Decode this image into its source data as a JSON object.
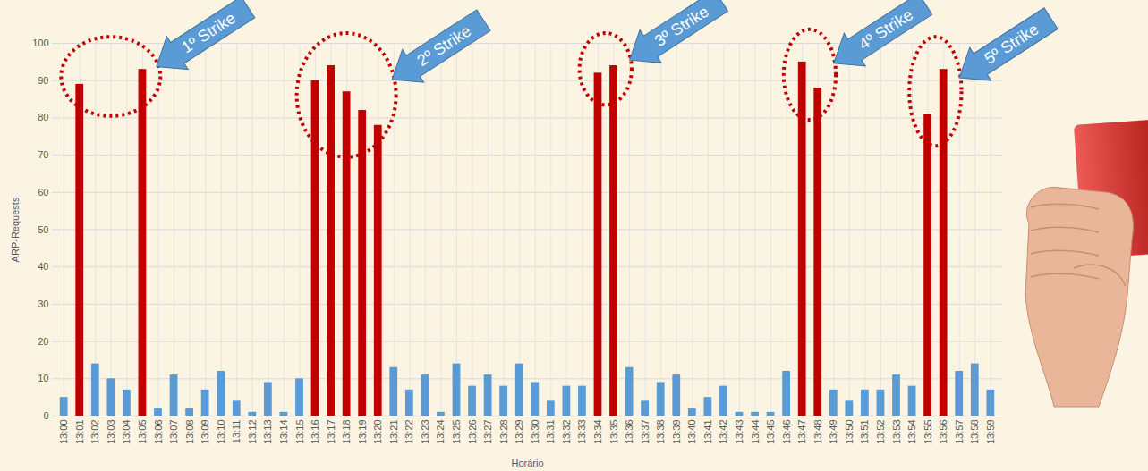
{
  "chart_data": {
    "type": "bar",
    "x_label": "Horário",
    "y_label": "ARP-Requests",
    "categories": [
      "13:00",
      "13:01",
      "13:02",
      "13:03",
      "13:04",
      "13:05",
      "13:06",
      "13:07",
      "13:08",
      "13:09",
      "13:10",
      "13:11",
      "13:12",
      "13:13",
      "13:14",
      "13:15",
      "13:16",
      "13:17",
      "13:18",
      "13:19",
      "13:20",
      "13:21",
      "13:22",
      "13:23",
      "13:24",
      "13:25",
      "13:26",
      "13:27",
      "13:28",
      "13:29",
      "13:30",
      "13:31",
      "13:32",
      "13:33",
      "13:34",
      "13:35",
      "13:36",
      "13:37",
      "13:38",
      "13:39",
      "13:40",
      "13:41",
      "13:42",
      "13:43",
      "13:44",
      "13:45",
      "13:46",
      "13:47",
      "13:48",
      "13:49",
      "13:50",
      "13:51",
      "13:52",
      "13:53",
      "13:54",
      "13:55",
      "13:56",
      "13:57",
      "13:58",
      "13:59"
    ],
    "values": [
      5,
      89,
      14,
      10,
      7,
      93,
      2,
      11,
      2,
      7,
      12,
      4,
      1,
      9,
      1,
      10,
      90,
      94,
      87,
      82,
      78,
      13,
      7,
      11,
      1,
      14,
      8,
      11,
      8,
      14,
      9,
      4,
      8,
      8,
      92,
      94,
      13,
      4,
      9,
      11,
      2,
      5,
      8,
      1,
      1,
      1,
      12,
      95,
      88,
      7,
      4,
      7,
      7,
      11,
      8,
      81,
      93,
      12,
      14,
      7
    ],
    "colors": [
      "#5b9bd5",
      "#c00000",
      "#5b9bd5",
      "#5b9bd5",
      "#5b9bd5",
      "#c00000",
      "#5b9bd5",
      "#5b9bd5",
      "#5b9bd5",
      "#5b9bd5",
      "#5b9bd5",
      "#5b9bd5",
      "#5b9bd5",
      "#5b9bd5",
      "#5b9bd5",
      "#5b9bd5",
      "#c00000",
      "#c00000",
      "#c00000",
      "#c00000",
      "#c00000",
      "#5b9bd5",
      "#5b9bd5",
      "#5b9bd5",
      "#5b9bd5",
      "#5b9bd5",
      "#5b9bd5",
      "#5b9bd5",
      "#5b9bd5",
      "#5b9bd5",
      "#5b9bd5",
      "#5b9bd5",
      "#5b9bd5",
      "#5b9bd5",
      "#c00000",
      "#c00000",
      "#5b9bd5",
      "#5b9bd5",
      "#5b9bd5",
      "#5b9bd5",
      "#5b9bd5",
      "#5b9bd5",
      "#5b9bd5",
      "#5b9bd5",
      "#5b9bd5",
      "#5b9bd5",
      "#5b9bd5",
      "#c00000",
      "#c00000",
      "#5b9bd5",
      "#5b9bd5",
      "#5b9bd5",
      "#5b9bd5",
      "#5b9bd5",
      "#5b9bd5",
      "#c00000",
      "#c00000",
      "#5b9bd5",
      "#5b9bd5",
      "#5b9bd5"
    ],
    "ylim": [
      0,
      100
    ],
    "yticks": [
      0,
      10,
      20,
      30,
      40,
      50,
      60,
      70,
      80,
      90,
      100
    ],
    "grid": true,
    "annotations": [
      {
        "text": "1º Strike",
        "categories": [
          "13:01",
          "13:05"
        ]
      },
      {
        "text": "2º Strike",
        "categories": [
          "13:16",
          "13:17",
          "13:18",
          "13:19",
          "13:20"
        ]
      },
      {
        "text": "3º Strike",
        "categories": [
          "13:34",
          "13:35"
        ]
      },
      {
        "text": "4º Strike",
        "categories": [
          "13:47",
          "13:48"
        ]
      },
      {
        "text": "5º Strike",
        "categories": [
          "13:55",
          "13:56"
        ]
      }
    ]
  }
}
